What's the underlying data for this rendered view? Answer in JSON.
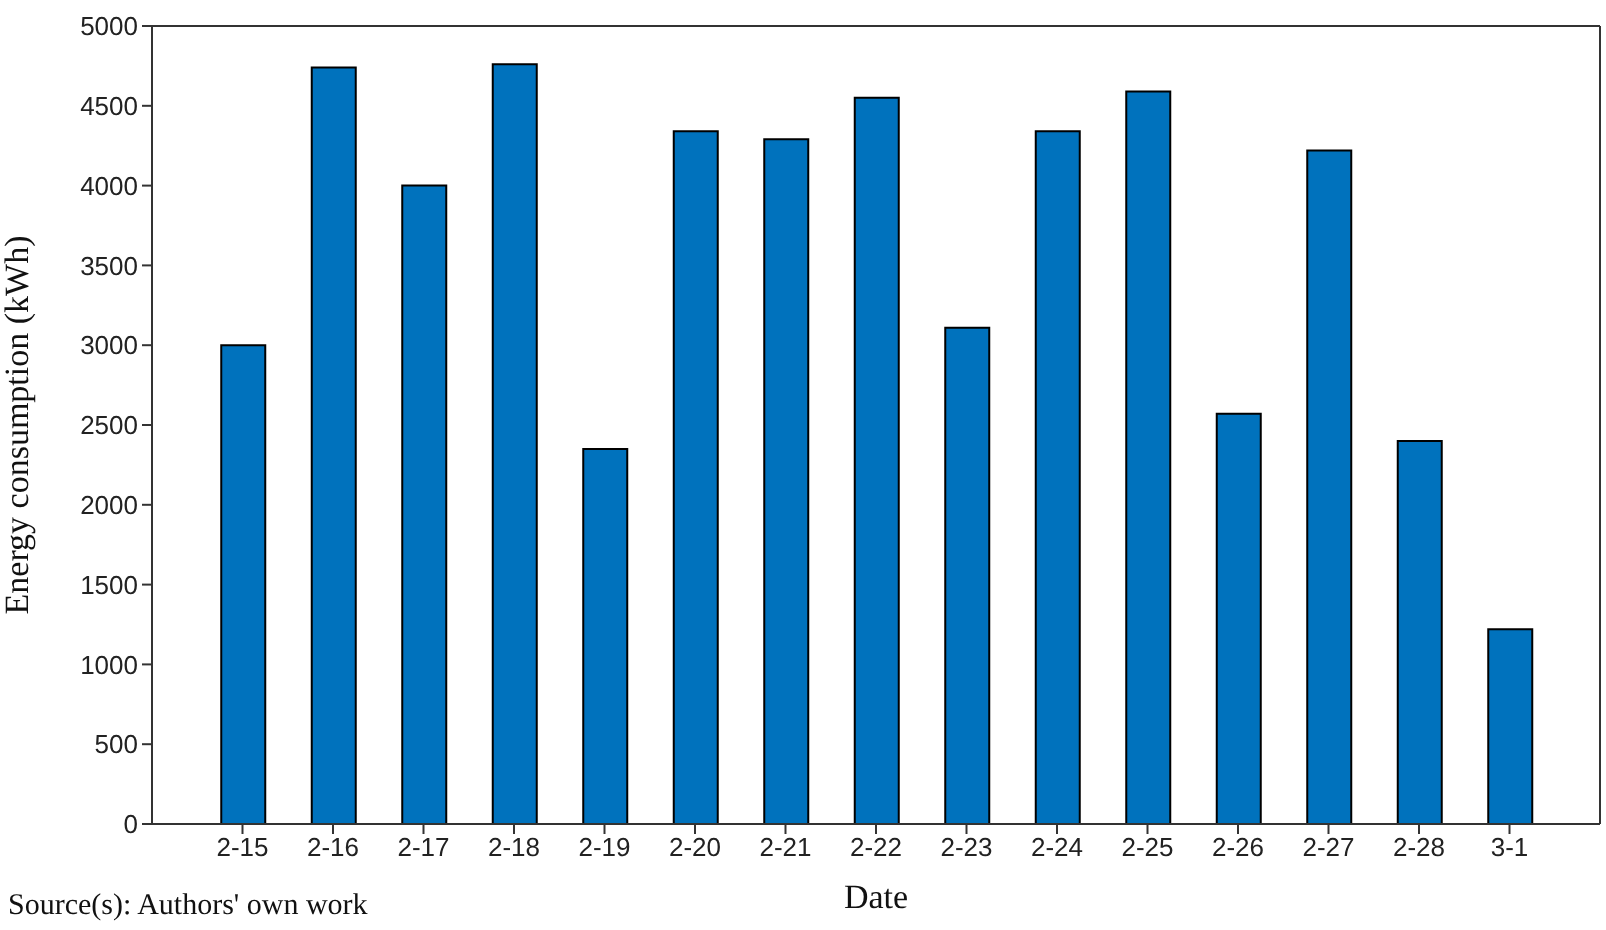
{
  "chart_data": {
    "type": "bar",
    "xlabel": "Date",
    "ylabel": "Energy consumption (kWh)",
    "categories": [
      "2-15",
      "2-16",
      "2-17",
      "2-18",
      "2-19",
      "2-20",
      "2-21",
      "2-22",
      "2-23",
      "2-24",
      "2-25",
      "2-26",
      "2-27",
      "2-28",
      "3-1"
    ],
    "values": [
      3000,
      4740,
      4000,
      4760,
      2350,
      4340,
      4290,
      4550,
      3110,
      4340,
      4590,
      2570,
      4220,
      2400,
      1220
    ],
    "color": "#0072bd",
    "ylim": [
      0,
      5000
    ],
    "yticks": [
      0,
      500,
      1000,
      1500,
      2000,
      2500,
      3000,
      3500,
      4000,
      4500,
      5000
    ],
    "annotations": [
      "Source(s): Authors' own work"
    ]
  }
}
